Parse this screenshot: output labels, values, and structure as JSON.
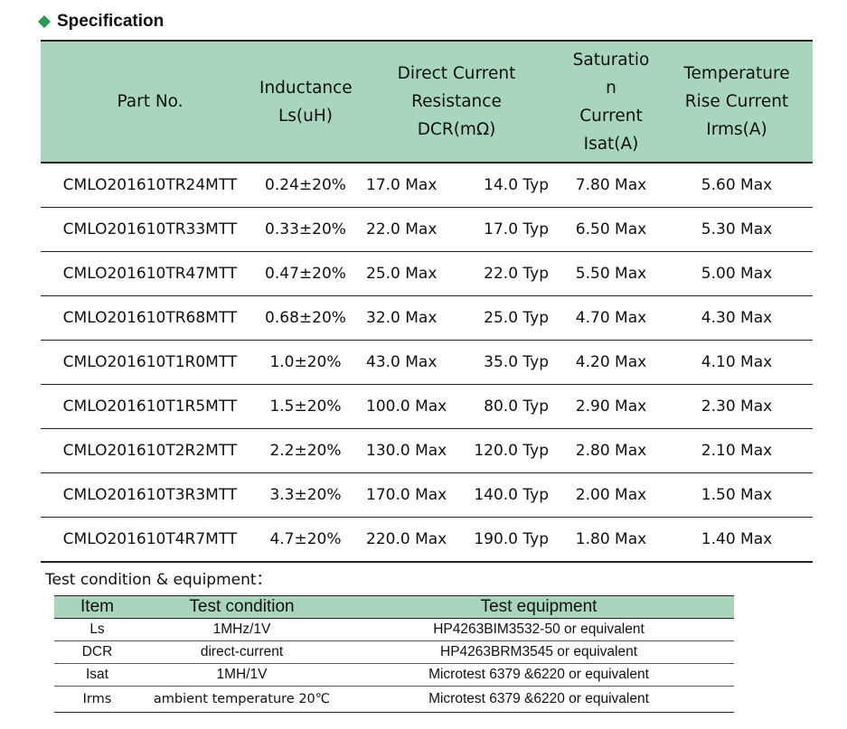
{
  "section_title": "Specification",
  "spec_table": {
    "headers": {
      "part_no": "Part No.",
      "inductance_1": "Inductance",
      "inductance_2": "Ls(uH)",
      "dcr_1": "Direct Current",
      "dcr_2": "Resistance",
      "dcr_3": "DCR(mΩ)",
      "isat_1": "Saturatio",
      "isat_2": "n",
      "isat_3": "Current",
      "isat_4": "Isat(A)",
      "irms_1": "Temperature",
      "irms_2": "Rise Current",
      "irms_3": "Irms(A)"
    },
    "rows": [
      {
        "part": "CMLO201610TR24MTT",
        "ls": "0.24±20%",
        "dcr_max": "17.0 Max",
        "dcr_typ": "14.0 Typ",
        "isat": "7.80 Max",
        "irms": "5.60 Max"
      },
      {
        "part": "CMLO201610TR33MTT",
        "ls": "0.33±20%",
        "dcr_max": "22.0 Max",
        "dcr_typ": "17.0 Typ",
        "isat": "6.50 Max",
        "irms": "5.30 Max"
      },
      {
        "part": "CMLO201610TR47MTT",
        "ls": "0.47±20%",
        "dcr_max": "25.0 Max",
        "dcr_typ": "22.0 Typ",
        "isat": "5.50 Max",
        "irms": "5.00 Max"
      },
      {
        "part": "CMLO201610TR68MTT",
        "ls": "0.68±20%",
        "dcr_max": "32.0 Max",
        "dcr_typ": "25.0 Typ",
        "isat": "4.70 Max",
        "irms": "4.30 Max"
      },
      {
        "part": "CMLO201610T1R0MTT",
        "ls": "1.0±20%",
        "dcr_max": "43.0 Max",
        "dcr_typ": "35.0 Typ",
        "isat": "4.20 Max",
        "irms": "4.10 Max"
      },
      {
        "part": "CMLO201610T1R5MTT",
        "ls": "1.5±20%",
        "dcr_max": "100.0 Max",
        "dcr_typ": "80.0 Typ",
        "isat": "2.90 Max",
        "irms": "2.30 Max"
      },
      {
        "part": "CMLO201610T2R2MTT",
        "ls": "2.2±20%",
        "dcr_max": "130.0 Max",
        "dcr_typ": "120.0 Typ",
        "isat": "2.80 Max",
        "irms": "2.10 Max"
      },
      {
        "part": "CMLO201610T3R3MTT",
        "ls": "3.3±20%",
        "dcr_max": "170.0 Max",
        "dcr_typ": "140.0 Typ",
        "isat": "2.00 Max",
        "irms": "1.50 Max"
      },
      {
        "part": "CMLO201610T4R7MTT",
        "ls": "4.7±20%",
        "dcr_max": "220.0 Max",
        "dcr_typ": "190.0 Typ",
        "isat": "1.80 Max",
        "irms": "1.40 Max"
      }
    ]
  },
  "test_section_title": "Test condition & equipment：",
  "test_table": {
    "headers": {
      "item": "Item",
      "condition": "Test condition",
      "equipment": "Test equipment"
    },
    "rows": [
      {
        "item": "Ls",
        "condition": "1MHz/1V",
        "equipment": "HP4263BIM3532-50 or equivalent"
      },
      {
        "item": "DCR",
        "condition": "direct-current",
        "equipment": "HP4263BRM3545 or equivalent"
      },
      {
        "item": "Isat",
        "condition": "1MH/1V",
        "equipment": "Microtest 6379 &6220 or equivalent"
      },
      {
        "item": "Irms",
        "condition": "ambient temperature 20℃",
        "equipment": "Microtest 6379 &6220 or equivalent"
      }
    ]
  },
  "colors": {
    "header_bg": "#a8d5bc",
    "bullet": "#2e9a5a"
  }
}
